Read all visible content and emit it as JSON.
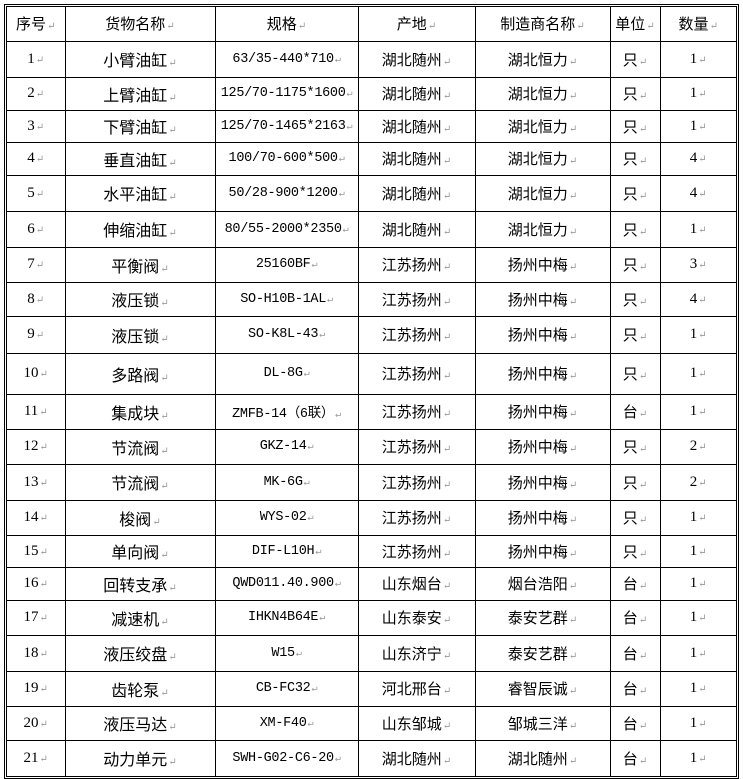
{
  "table": {
    "headers": [
      "序号",
      "货物名称",
      "规格",
      "产地",
      "制造商名称",
      "单位",
      "数量"
    ],
    "rows": [
      [
        "1",
        "小臂油缸",
        "63/35-440*710",
        "湖北随州",
        "湖北恒力",
        "只",
        "1"
      ],
      [
        "2",
        "上臂油缸",
        "125/70-1175*1600",
        "湖北随州",
        "湖北恒力",
        "只",
        "1"
      ],
      [
        "3",
        "下臂油缸",
        "125/70-1465*2163",
        "湖北随州",
        "湖北恒力",
        "只",
        "1"
      ],
      [
        "4",
        "垂直油缸",
        "100/70-600*500",
        "湖北随州",
        "湖北恒力",
        "只",
        "4"
      ],
      [
        "5",
        "水平油缸",
        "50/28-900*1200",
        "湖北随州",
        "湖北恒力",
        "只",
        "4"
      ],
      [
        "6",
        "伸缩油缸",
        "80/55-2000*2350",
        "湖北随州",
        "湖北恒力",
        "只",
        "1"
      ],
      [
        "7",
        "平衡阀",
        "25160BF",
        "江苏扬州",
        "扬州中梅",
        "只",
        "3"
      ],
      [
        "8",
        "液压锁",
        "SO-H10B-1AL",
        "江苏扬州",
        "扬州中梅",
        "只",
        "4"
      ],
      [
        "9",
        "液压锁",
        "SO-K8L-43",
        "江苏扬州",
        "扬州中梅",
        "只",
        "1"
      ],
      [
        "10",
        "多路阀",
        "DL-8G",
        "江苏扬州",
        "扬州中梅",
        "只",
        "1"
      ],
      [
        "11",
        "集成块",
        "ZMFB-14（6联）",
        "江苏扬州",
        "扬州中梅",
        "台",
        "1"
      ],
      [
        "12",
        "节流阀",
        "GKZ-14",
        "江苏扬州",
        "扬州中梅",
        "只",
        "2"
      ],
      [
        "13",
        "节流阀",
        "MK-6G",
        "江苏扬州",
        "扬州中梅",
        "只",
        "2"
      ],
      [
        "14",
        "梭阀",
        "WYS-02",
        "江苏扬州",
        "扬州中梅",
        "只",
        "1"
      ],
      [
        "15",
        "单向阀",
        "DIF-L10H",
        "江苏扬州",
        "扬州中梅",
        "只",
        "1"
      ],
      [
        "16",
        "回转支承",
        "QWD011.40.900",
        "山东烟台",
        "烟台浩阳",
        "台",
        "1"
      ],
      [
        "17",
        "减速机",
        "IHKN4B64E",
        "山东泰安",
        "泰安艺群",
        "台",
        "1"
      ],
      [
        "18",
        "液压绞盘",
        "W15",
        "山东济宁",
        "泰安艺群",
        "台",
        "1"
      ],
      [
        "19",
        "齿轮泵",
        "CB-FC32",
        "河北邢台",
        "睿智辰诚",
        "台",
        "1"
      ],
      [
        "20",
        "液压马达",
        "XM-F40",
        "山东邹城",
        "邹城三洋",
        "台",
        "1"
      ],
      [
        "21",
        "动力单元",
        "SWH-G02-C6-20",
        "湖北随州",
        "湖北随州",
        "台",
        "1"
      ]
    ]
  }
}
